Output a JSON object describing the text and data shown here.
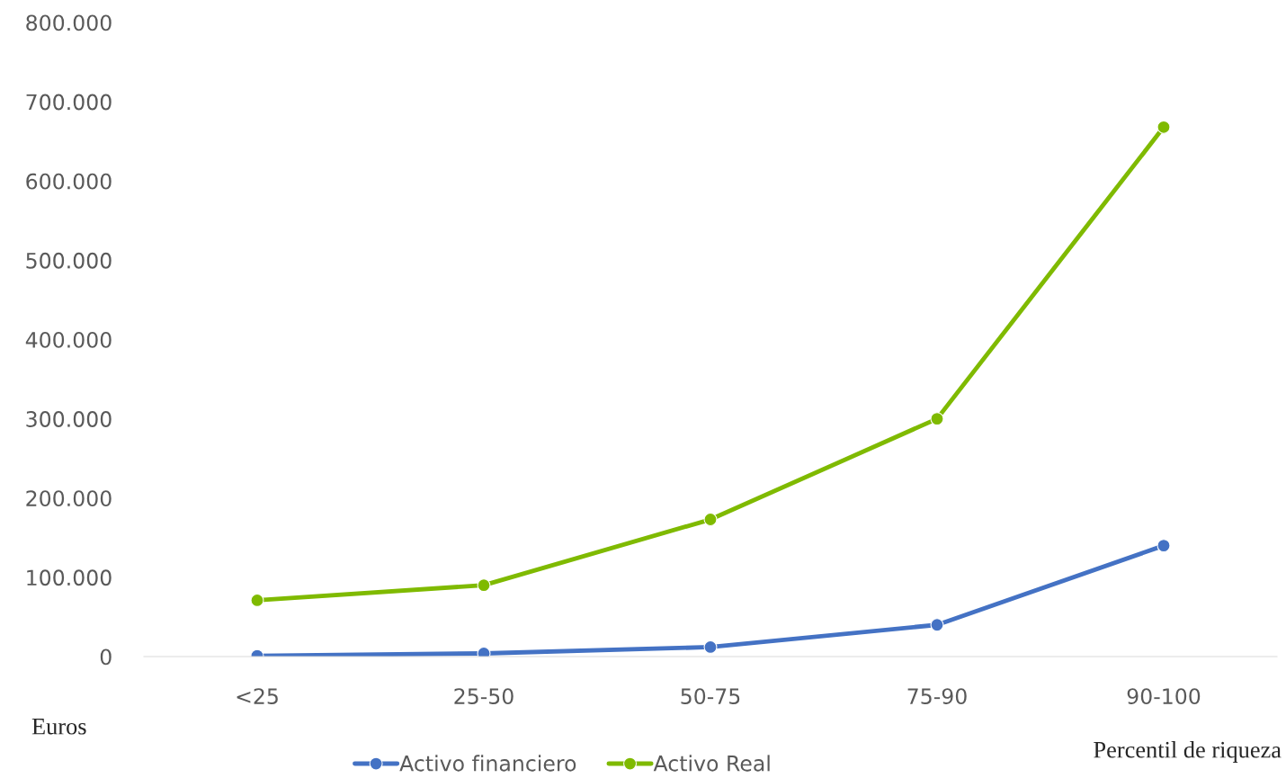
{
  "chart_data": {
    "type": "line",
    "xlabel": "Percentil de riqueza",
    "ylabel": "Euros",
    "categories": [
      "<25",
      "25-50",
      "50-75",
      "75-90",
      "90-100"
    ],
    "series": [
      {
        "name": "Activo financiero",
        "color": "#4472c4",
        "values": [
          1000,
          4000,
          12000,
          40000,
          140000
        ]
      },
      {
        "name": "Activo Real",
        "color": "#7fba00",
        "values": [
          71000,
          90000,
          173000,
          300000,
          668000
        ]
      }
    ],
    "ylim": [
      0,
      800000
    ],
    "yticks": [
      {
        "value": 0,
        "label": "0"
      },
      {
        "value": 100000,
        "label": "100.000"
      },
      {
        "value": 200000,
        "label": "200.000"
      },
      {
        "value": 300000,
        "label": "300.000"
      },
      {
        "value": 400000,
        "label": "400.000"
      },
      {
        "value": 500000,
        "label": "500.000"
      },
      {
        "value": 600000,
        "label": "600.000"
      },
      {
        "value": 700000,
        "label": "700.000"
      },
      {
        "value": 800000,
        "label": "800.000"
      }
    ],
    "grid": false,
    "legend": "bottom",
    "marker": "circle",
    "line_style": "solid"
  }
}
